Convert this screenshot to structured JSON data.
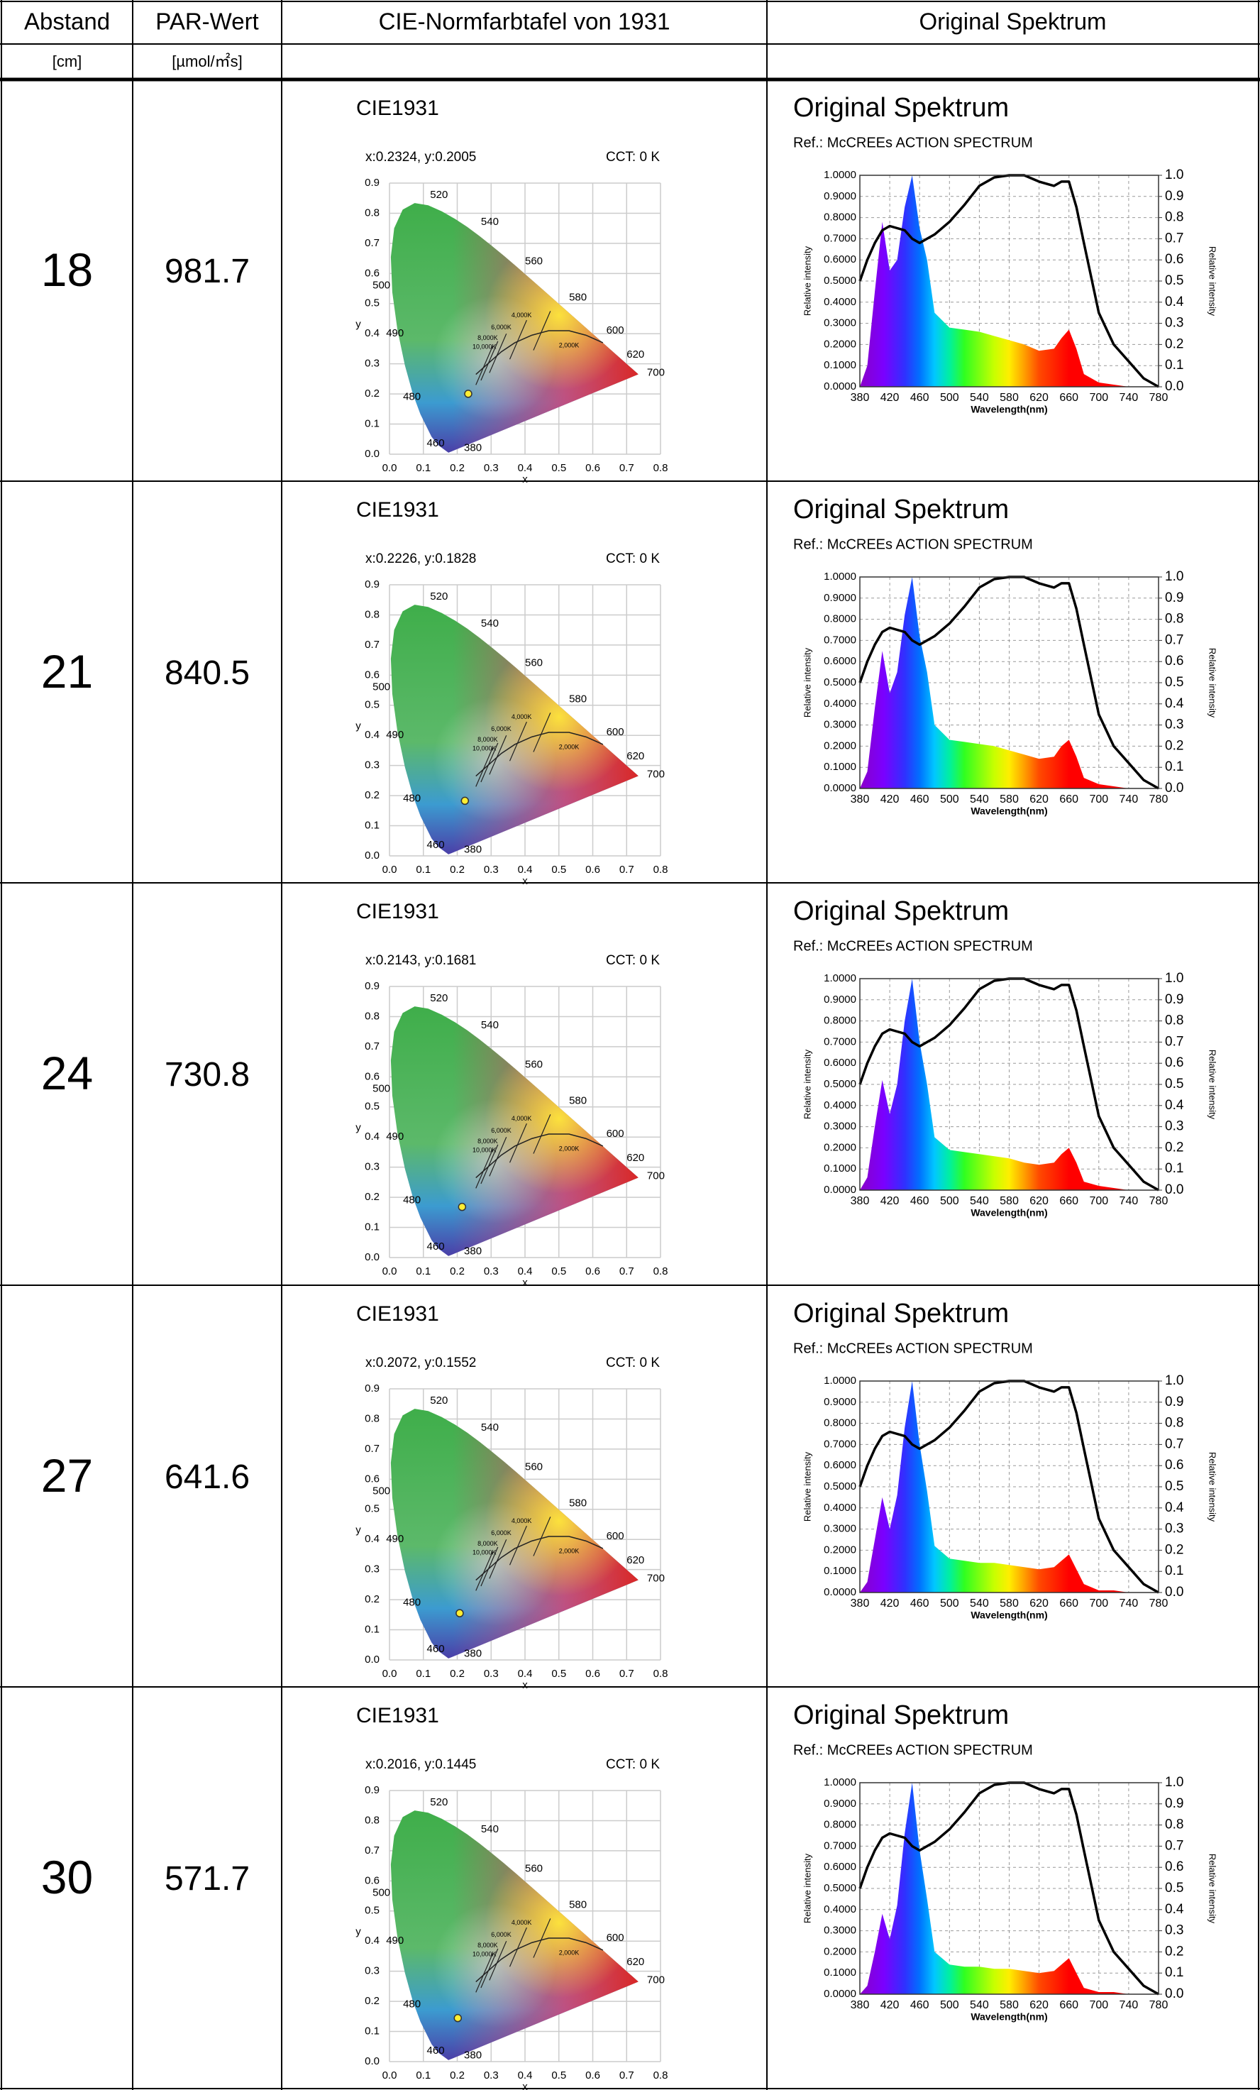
{
  "table": {
    "header": [
      "Abstand",
      "PAR-Wert",
      "CIE-Normfarbtafel von 1931",
      "Original Spektrum"
    ],
    "units": [
      "[cm]",
      "[µmol/㎡s]"
    ],
    "rows": [
      {
        "distance": "18",
        "par": "981.7",
        "cie_label": "x:0.2324, y:0.2005",
        "cie_x": 0.2324,
        "cie_y": 0.2005,
        "spectrum": [
          0,
          0.1,
          0.45,
          0.78,
          0.55,
          0.6,
          0.85,
          1.0,
          0.75,
          0.6,
          0.35,
          0.28,
          0.27,
          0.26,
          0.24,
          0.22,
          0.2,
          0.17,
          0.18,
          0.23,
          0.27,
          0.18,
          0.06,
          0.02,
          0.01,
          0,
          0,
          0
        ]
      },
      {
        "distance": "21",
        "par": "840.5",
        "cie_label": "x:0.2226, y:0.1828",
        "cie_x": 0.2226,
        "cie_y": 0.1828,
        "spectrum": [
          0,
          0.08,
          0.38,
          0.65,
          0.45,
          0.55,
          0.82,
          1.0,
          0.72,
          0.55,
          0.3,
          0.23,
          0.22,
          0.21,
          0.2,
          0.18,
          0.16,
          0.14,
          0.15,
          0.2,
          0.23,
          0.15,
          0.05,
          0.02,
          0.01,
          0,
          0,
          0
        ]
      },
      {
        "distance": "24",
        "par": "730.8",
        "cie_label": "x:0.2143, y:0.1681",
        "cie_x": 0.2143,
        "cie_y": 0.1681,
        "spectrum": [
          0,
          0.06,
          0.3,
          0.52,
          0.36,
          0.5,
          0.8,
          1.0,
          0.7,
          0.5,
          0.25,
          0.19,
          0.18,
          0.17,
          0.16,
          0.15,
          0.13,
          0.12,
          0.13,
          0.17,
          0.2,
          0.13,
          0.04,
          0.02,
          0.01,
          0,
          0,
          0
        ]
      },
      {
        "distance": "27",
        "par": "641.6",
        "cie_label": "x:0.2072, y:0.1552",
        "cie_x": 0.2072,
        "cie_y": 0.1552,
        "spectrum": [
          0,
          0.05,
          0.25,
          0.45,
          0.3,
          0.46,
          0.78,
          1.0,
          0.7,
          0.48,
          0.22,
          0.16,
          0.15,
          0.14,
          0.14,
          0.13,
          0.12,
          0.11,
          0.12,
          0.15,
          0.18,
          0.11,
          0.04,
          0.01,
          0.01,
          0,
          0,
          0
        ]
      },
      {
        "distance": "30",
        "par": "571.7",
        "cie_label": "x:0.2016, y:0.1445",
        "cie_x": 0.2016,
        "cie_y": 0.1445,
        "spectrum": [
          0,
          0.04,
          0.2,
          0.38,
          0.26,
          0.42,
          0.76,
          1.0,
          0.68,
          0.45,
          0.2,
          0.14,
          0.13,
          0.13,
          0.12,
          0.12,
          0.11,
          0.1,
          0.11,
          0.14,
          0.17,
          0.1,
          0.03,
          0.01,
          0.01,
          0,
          0,
          0
        ]
      }
    ]
  },
  "cie_chart": {
    "type": "scatter",
    "title": "CIE1931",
    "cct": "CCT: 0 K",
    "x_label": "x",
    "y_label": "y",
    "xlim": [
      0,
      0.8
    ],
    "ylim": [
      0,
      0.9
    ],
    "xticks": [
      {
        "value": 0,
        "label": "0.0"
      },
      0.1,
      0.2,
      0.3,
      0.4,
      0.5,
      0.6,
      0.7,
      0.8
    ],
    "yticks": [
      {
        "value": 0,
        "label": "0.0"
      },
      0.1,
      0.2,
      0.3,
      0.4,
      0.5,
      0.6,
      0.7,
      0.8,
      0.9
    ],
    "wavelengths": [
      "520",
      "540",
      "560",
      "580",
      "600",
      "620",
      "700",
      "500",
      "490",
      "480",
      "460",
      "380"
    ],
    "cct_labels": [
      "4,000K",
      "6,000K",
      "8,000K",
      "10,000K",
      "2,000K"
    ],
    "point_color": "#ffee33"
  },
  "spectrum_chart": {
    "type": "area",
    "title": "Original Spektrum",
    "subtitle": "Ref.: McCREEs ACTION SPECTRUM",
    "x": [
      380,
      390,
      400,
      410,
      420,
      430,
      440,
      450,
      460,
      470,
      480,
      500,
      520,
      540,
      560,
      580,
      600,
      620,
      640,
      650,
      660,
      670,
      680,
      700,
      720,
      740,
      760,
      780
    ],
    "xlim": [
      380,
      780
    ],
    "xticks": [
      380,
      420,
      460,
      500,
      540,
      580,
      620,
      660,
      700,
      740,
      780
    ],
    "ylim": [
      0,
      1
    ],
    "yticks": [
      {
        "value": 0,
        "label": "0.0000"
      },
      {
        "value": 0.1,
        "label": "0.1000"
      },
      {
        "value": 0.2,
        "label": "0.2000"
      },
      {
        "value": 0.3,
        "label": "0.3000"
      },
      {
        "value": 0.4,
        "label": "0.4000"
      },
      {
        "value": 0.5,
        "label": "0.5000"
      },
      {
        "value": 0.6,
        "label": "0.6000"
      },
      {
        "value": 0.7,
        "label": "0.7000"
      },
      {
        "value": 0.8,
        "label": "0.8000"
      },
      {
        "value": 0.9,
        "label": "0.9000"
      },
      {
        "value": 1,
        "label": "1.0000"
      }
    ],
    "y2lim": [
      0,
      1
    ],
    "y2ticks": [
      {
        "value": 0,
        "label": "0.0"
      },
      0.1,
      0.2,
      0.3,
      0.4,
      0.5,
      0.6,
      0.7,
      0.8,
      0.9,
      {
        "value": 1,
        "label": "1.0"
      }
    ],
    "x_label": "Wavelength(nm)",
    "y_label": "Relative intensity",
    "y2_label": "Relative intensity",
    "grid": true,
    "action_spectrum": {
      "axis": "y2",
      "color": "#000000",
      "values": [
        0.5,
        0.6,
        0.68,
        0.74,
        0.76,
        0.75,
        0.74,
        0.7,
        0.68,
        0.7,
        0.72,
        0.78,
        0.86,
        0.95,
        0.99,
        1.0,
        1.0,
        0.97,
        0.95,
        0.97,
        0.97,
        0.85,
        0.68,
        0.35,
        0.2,
        0.12,
        0.04,
        0
      ]
    }
  }
}
